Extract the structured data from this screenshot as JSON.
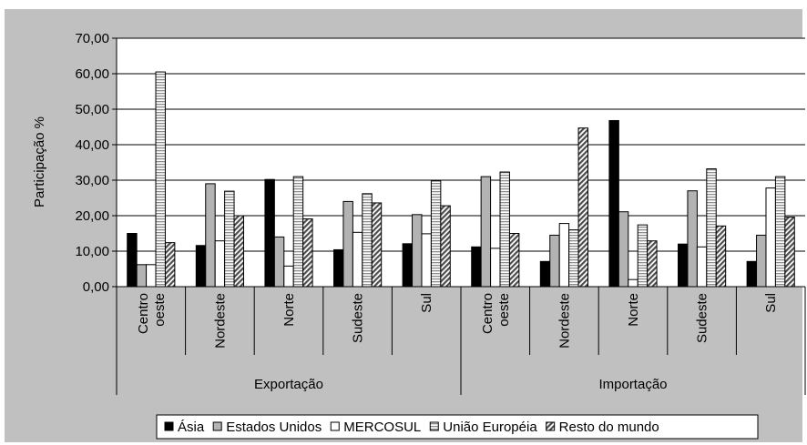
{
  "chart_data": {
    "type": "bar",
    "ylabel": "Participação %",
    "ylim": [
      0,
      70
    ],
    "yticks": [
      "0,00",
      "10,00",
      "20,00",
      "30,00",
      "40,00",
      "50,00",
      "60,00",
      "70,00"
    ],
    "grid": true,
    "legend_position": "bottom",
    "groups": [
      {
        "label": "Exportação",
        "categories": [
          [
            "Centro",
            "oeste"
          ],
          [
            "Nordeste"
          ],
          [
            "Norte"
          ],
          [
            "Sudeste"
          ],
          [
            "Sul"
          ]
        ]
      },
      {
        "label": "Importação",
        "categories": [
          [
            "Centro",
            "oeste"
          ],
          [
            "Nordeste"
          ],
          [
            "Norte"
          ],
          [
            "Sudeste"
          ],
          [
            "Sul"
          ]
        ]
      }
    ],
    "series": [
      {
        "name": "Ásia",
        "color": "#000000",
        "pattern": "solid",
        "values": [
          15.0,
          11.6,
          30.2,
          10.4,
          12.1,
          11.2,
          7.1,
          46.8,
          12.0,
          7.1
        ]
      },
      {
        "name": "Estados Unidos",
        "color": "#b3b3b3",
        "pattern": "solid",
        "values": [
          6.2,
          29.0,
          14.0,
          24.0,
          20.3,
          31.0,
          14.5,
          21.1,
          27.0,
          14.5
        ]
      },
      {
        "name": "MERCOSUL",
        "color": "#ffffff",
        "pattern": "solid",
        "values": [
          6.2,
          12.9,
          5.8,
          15.3,
          14.9,
          10.8,
          17.8,
          2.0,
          11.2,
          27.8
        ]
      },
      {
        "name": "União Européia",
        "color": "#d9d9d9",
        "pattern": "hstripes",
        "values": [
          60.5,
          26.9,
          31.0,
          26.2,
          29.8,
          32.3,
          16.0,
          17.4,
          33.2,
          31.0
        ]
      },
      {
        "name": "Resto do mundo",
        "color": "#808080",
        "pattern": "diagonal",
        "values": [
          12.4,
          20.0,
          19.1,
          23.6,
          22.8,
          15.0,
          44.7,
          12.9,
          17.1,
          19.6
        ]
      }
    ]
  }
}
